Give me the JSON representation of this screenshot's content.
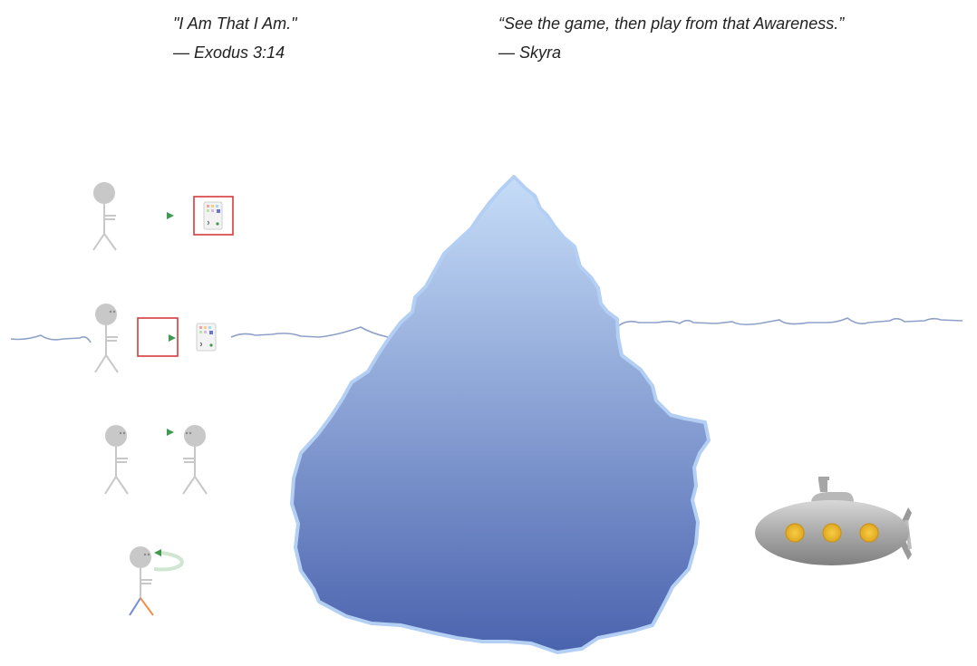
{
  "quotes": [
    {
      "text": "\"I Am That I Am.\"",
      "attribution": "— Exodus 3:14"
    },
    {
      "text": "“See the game, then play from that Awareness.”",
      "attribution": "— Skyra"
    }
  ],
  "colors": {
    "iceberg_top": "#c6ddf8",
    "iceberg_bottom": "#4a63ae",
    "iceberg_outline": "#b4cff4",
    "water_line": "#8fa0c8",
    "figure_gray": "#c8c8c8",
    "arrow_green": "#3f9a4f",
    "highlight_red": "#d63b3b",
    "submarine_gray": "#9a9a9a",
    "porthole_yellow": "#f0be2c",
    "limb_orange": "#f0914a",
    "limb_blue": "#6f8fd0"
  },
  "icons": {
    "person": "stick-figure-icon",
    "phone": "phone-screen-icon",
    "submarine": "submarine-icon",
    "cycle": "circular-arrow-icon"
  }
}
